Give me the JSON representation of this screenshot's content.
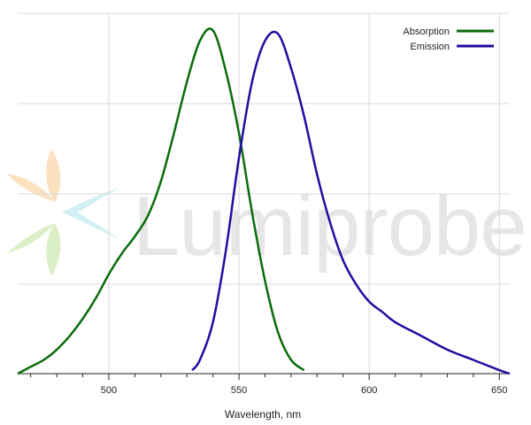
{
  "chart_data": {
    "type": "line",
    "xlabel": "Wavelength, nm",
    "ylabel": "",
    "xlim": [
      465,
      654
    ],
    "ylim": [
      0,
      1.05
    ],
    "x_ticks": [
      500,
      550,
      600,
      650
    ],
    "grid": true,
    "legend_position": "top-right",
    "series": [
      {
        "name": "Absorption",
        "color": "#0b6b0b",
        "x": [
          465,
          470,
          475,
          480,
          485,
          490,
          495,
          500,
          505,
          510,
          515,
          520,
          525,
          530,
          535,
          540,
          545,
          550,
          555,
          560,
          565,
          570,
          575
        ],
        "y": [
          0.0,
          0.02,
          0.04,
          0.07,
          0.11,
          0.16,
          0.22,
          0.29,
          0.35,
          0.4,
          0.46,
          0.56,
          0.7,
          0.85,
          0.97,
          1.0,
          0.88,
          0.7,
          0.47,
          0.27,
          0.12,
          0.04,
          0.01
        ]
      },
      {
        "name": "Emission",
        "color": "#1f0fa0",
        "x": [
          532,
          535,
          540,
          545,
          550,
          555,
          560,
          565,
          570,
          575,
          580,
          585,
          590,
          595,
          600,
          605,
          610,
          620,
          630,
          640,
          650,
          654
        ],
        "y": [
          0.01,
          0.04,
          0.15,
          0.36,
          0.63,
          0.85,
          0.97,
          0.99,
          0.89,
          0.75,
          0.58,
          0.44,
          0.33,
          0.26,
          0.21,
          0.18,
          0.15,
          0.11,
          0.07,
          0.04,
          0.01,
          0.0
        ]
      }
    ]
  },
  "watermark": {
    "text": "Lumiprobe",
    "colors": [
      "#f7c98a",
      "#bfe8ef",
      "#c8e6a8"
    ]
  }
}
